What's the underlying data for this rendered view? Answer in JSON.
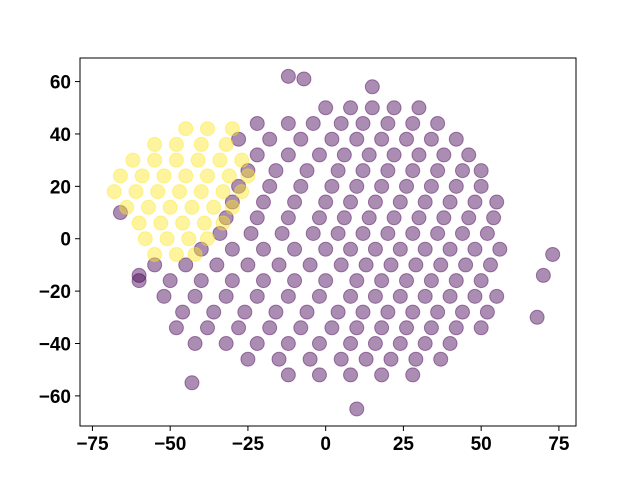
{
  "chart_data": {
    "type": "scatter",
    "xlim": [
      -79,
      80.5
    ],
    "ylim": [
      -71.5,
      69
    ],
    "xticks": [
      {
        "value": -75,
        "label": "−75"
      },
      {
        "value": -50,
        "label": "−50"
      },
      {
        "value": -25,
        "label": "−25"
      },
      0,
      25,
      50,
      75
    ],
    "yticks": [
      {
        "value": -60,
        "label": "−60"
      },
      {
        "value": -40,
        "label": "−40"
      },
      {
        "value": -20,
        "label": "−20"
      },
      0,
      20,
      40,
      60
    ],
    "opacity": 0.45,
    "series": [
      {
        "color": "#440154",
        "x": [
          0,
          8,
          15,
          22,
          30,
          -22,
          -12,
          -4,
          5,
          12,
          20,
          28,
          36,
          -28,
          -18,
          -8,
          2,
          10,
          18,
          26,
          34,
          42,
          -22,
          -12,
          -2,
          6,
          14,
          22,
          30,
          38,
          46,
          -25,
          -16,
          -6,
          4,
          12,
          20,
          28,
          36,
          44,
          50,
          -28,
          -18,
          -8,
          2,
          10,
          18,
          26,
          34,
          42,
          50,
          -30,
          -20,
          -10,
          0,
          8,
          16,
          24,
          32,
          40,
          48,
          55,
          -32,
          -22,
          -12,
          -2,
          6,
          14,
          22,
          30,
          38,
          46,
          54,
          -34,
          -24,
          -14,
          -4,
          4,
          12,
          20,
          28,
          36,
          44,
          52,
          -40,
          -30,
          -20,
          -10,
          0,
          8,
          16,
          24,
          32,
          40,
          48,
          56,
          -55,
          -45,
          -35,
          -25,
          -15,
          -5,
          5,
          13,
          21,
          29,
          37,
          45,
          53,
          -60,
          -50,
          -40,
          -30,
          -20,
          -10,
          0,
          10,
          18,
          26,
          34,
          42,
          50,
          -52,
          -42,
          -32,
          -22,
          -12,
          -2,
          8,
          16,
          24,
          32,
          40,
          48,
          55,
          -46,
          -36,
          -26,
          -16,
          -6,
          4,
          12,
          20,
          28,
          36,
          44,
          52,
          -48,
          -38,
          -28,
          -18,
          -8,
          2,
          10,
          18,
          26,
          34,
          42,
          50,
          -42,
          -32,
          -22,
          -12,
          -2,
          8,
          16,
          24,
          32,
          40,
          -25,
          -15,
          -5,
          5,
          13,
          21,
          29,
          37,
          -12,
          -2,
          8,
          18,
          28,
          -43,
          10,
          73,
          70,
          68,
          -12,
          -7,
          15,
          -66,
          -60
        ],
        "y": [
          50,
          50,
          50,
          50,
          50,
          44,
          44,
          44,
          44,
          44,
          44,
          44,
          44,
          38,
          38,
          38,
          38,
          38,
          38,
          38,
          38,
          38,
          32,
          32,
          32,
          32,
          32,
          32,
          32,
          32,
          32,
          26,
          26,
          26,
          26,
          26,
          26,
          26,
          26,
          26,
          26,
          20,
          20,
          20,
          20,
          20,
          20,
          20,
          20,
          20,
          20,
          14,
          14,
          14,
          14,
          14,
          14,
          14,
          14,
          14,
          14,
          14,
          8,
          8,
          8,
          8,
          8,
          8,
          8,
          8,
          8,
          8,
          8,
          2,
          2,
          2,
          2,
          2,
          2,
          2,
          2,
          2,
          2,
          2,
          -4,
          -4,
          -4,
          -4,
          -4,
          -4,
          -4,
          -4,
          -4,
          -4,
          -4,
          -4,
          -10,
          -10,
          -10,
          -10,
          -10,
          -10,
          -10,
          -10,
          -10,
          -10,
          -10,
          -10,
          -10,
          -16,
          -16,
          -16,
          -16,
          -16,
          -16,
          -16,
          -16,
          -16,
          -16,
          -16,
          -16,
          -16,
          -22,
          -22,
          -22,
          -22,
          -22,
          -22,
          -22,
          -22,
          -22,
          -22,
          -22,
          -22,
          -22,
          -28,
          -28,
          -28,
          -28,
          -28,
          -28,
          -28,
          -28,
          -28,
          -28,
          -28,
          -28,
          -34,
          -34,
          -34,
          -34,
          -34,
          -34,
          -34,
          -34,
          -34,
          -34,
          -34,
          -34,
          -40,
          -40,
          -40,
          -40,
          -40,
          -40,
          -40,
          -40,
          -40,
          -40,
          -46,
          -46,
          -46,
          -46,
          -46,
          -46,
          -46,
          -46,
          -52,
          -52,
          -52,
          -52,
          -52,
          -55,
          -65,
          -6,
          -14,
          -30,
          62,
          61,
          58,
          10,
          -14
        ]
      },
      {
        "color": "#fde725",
        "x": [
          -45,
          -38,
          -30,
          -55,
          -48,
          -40,
          -32,
          -62,
          -55,
          -48,
          -41,
          -34,
          -27,
          -66,
          -59,
          -52,
          -45,
          -38,
          -31,
          -25,
          -68,
          -61,
          -54,
          -47,
          -40,
          -33,
          -27,
          -64,
          -57,
          -50,
          -43,
          -36,
          -30,
          -60,
          -53,
          -46,
          -39,
          -33,
          -58,
          -51,
          -44,
          -38,
          -55,
          -48,
          -42
        ],
        "y": [
          42,
          42,
          42,
          36,
          36,
          36,
          36,
          30,
          30,
          30,
          30,
          30,
          30,
          24,
          24,
          24,
          24,
          24,
          24,
          24,
          18,
          18,
          18,
          18,
          18,
          18,
          18,
          12,
          12,
          12,
          12,
          12,
          12,
          6,
          6,
          6,
          6,
          6,
          0,
          0,
          0,
          0,
          -6,
          -6,
          -6
        ]
      }
    ]
  }
}
